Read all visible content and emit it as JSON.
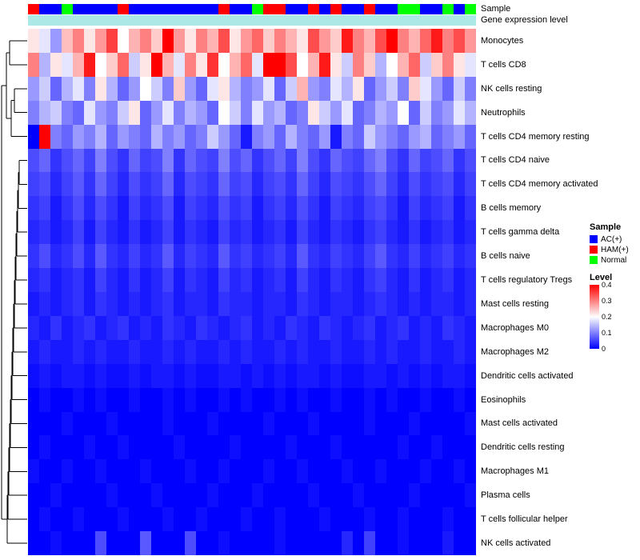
{
  "annotations": {
    "sample_label": "Sample",
    "gene_expr_label": "Gene expression level",
    "gene_expr_color": "#ABE8E6",
    "group_colors": {
      "AC(+)": "#0000FF",
      "HAM(+)": "#FF0000",
      "Normal": "#00FF00"
    },
    "sample_groups": [
      "HAM(+)",
      "AC(+)",
      "AC(+)",
      "Normal",
      "AC(+)",
      "AC(+)",
      "AC(+)",
      "AC(+)",
      "HAM(+)",
      "AC(+)",
      "AC(+)",
      "AC(+)",
      "AC(+)",
      "AC(+)",
      "AC(+)",
      "AC(+)",
      "AC(+)",
      "HAM(+)",
      "AC(+)",
      "AC(+)",
      "Normal",
      "HAM(+)",
      "HAM(+)",
      "AC(+)",
      "AC(+)",
      "HAM(+)",
      "AC(+)",
      "HAM(+)",
      "AC(+)",
      "AC(+)",
      "HAM(+)",
      "AC(+)",
      "AC(+)",
      "Normal",
      "Normal",
      "AC(+)",
      "AC(+)",
      "Normal",
      "AC(+)",
      "Normal"
    ]
  },
  "legend": {
    "sample_title": "Sample",
    "sample_items": [
      {
        "label": "AC(+)",
        "color": "#0000FF"
      },
      {
        "label": "HAM(+)",
        "color": "#FF0000"
      },
      {
        "label": "Normal",
        "color": "#00FF00"
      }
    ],
    "level_title": "Level",
    "level_ticks": [
      "0.4",
      "0.3",
      "0.2",
      "0.1",
      "0"
    ],
    "gradient": [
      "#FF0000",
      "#FFFFFF",
      "#0000FF"
    ]
  },
  "chart_data": {
    "type": "heatmap",
    "title": "",
    "rows": [
      "Monocytes",
      "T cells CD8",
      "NK cells resting",
      "Neutrophils",
      "T cells CD4 memory resting",
      "T cells CD4 naive",
      "T cells CD4 memory activated",
      "B cells memory",
      "T cells gamma delta",
      "B cells naive",
      "T cells regulatory  Tregs",
      "Mast cells resting",
      "Macrophages M0",
      "Macrophages M2",
      "Dendritic cells activated",
      "Eosinophils",
      "Mast cells activated",
      "Dendritic cells resting",
      "Macrophages M1",
      "Plasma cells",
      "T cells follicular helper",
      "NK cells activated"
    ],
    "n_cols": 40,
    "value_range": [
      0,
      0.4
    ],
    "colormap": {
      "low": "#0000FF",
      "mid": "#FFFFFF",
      "high": "#FF0000",
      "mid_value": 0.2
    },
    "values": [
      [
        0.22,
        0.18,
        0.12,
        0.25,
        0.3,
        0.22,
        0.28,
        0.35,
        0.2,
        0.26,
        0.3,
        0.24,
        0.4,
        0.28,
        0.22,
        0.3,
        0.26,
        0.34,
        0.22,
        0.28,
        0.32,
        0.24,
        0.3,
        0.26,
        0.22,
        0.34,
        0.28,
        0.24,
        0.38,
        0.3,
        0.26,
        0.34,
        0.4,
        0.3,
        0.26,
        0.32,
        0.38,
        0.3,
        0.34,
        0.28
      ],
      [
        0.3,
        0.14,
        0.22,
        0.18,
        0.26,
        0.38,
        0.2,
        0.24,
        0.32,
        0.16,
        0.22,
        0.4,
        0.26,
        0.18,
        0.3,
        0.22,
        0.36,
        0.2,
        0.26,
        0.32,
        0.18,
        0.4,
        0.42,
        0.34,
        0.2,
        0.26,
        0.38,
        0.22,
        0.16,
        0.3,
        0.24,
        0.14,
        0.2,
        0.26,
        0.32,
        0.16,
        0.24,
        0.3,
        0.22,
        0.18
      ],
      [
        0.12,
        0.16,
        0.08,
        0.14,
        0.18,
        0.1,
        0.22,
        0.14,
        0.08,
        0.12,
        0.2,
        0.16,
        0.1,
        0.24,
        0.12,
        0.08,
        0.18,
        0.22,
        0.14,
        0.1,
        0.12,
        0.18,
        0.08,
        0.16,
        0.26,
        0.12,
        0.1,
        0.18,
        0.14,
        0.22,
        0.08,
        0.12,
        0.16,
        0.1,
        0.24,
        0.18,
        0.12,
        0.08,
        0.16,
        0.1
      ],
      [
        0.1,
        0.14,
        0.16,
        0.1,
        0.08,
        0.18,
        0.12,
        0.1,
        0.16,
        0.22,
        0.08,
        0.12,
        0.18,
        0.1,
        0.14,
        0.12,
        0.08,
        0.2,
        0.16,
        0.1,
        0.18,
        0.12,
        0.14,
        0.08,
        0.1,
        0.22,
        0.16,
        0.12,
        0.18,
        0.08,
        0.1,
        0.14,
        0.12,
        0.2,
        0.08,
        0.16,
        0.1,
        0.12,
        0.18,
        0.14
      ],
      [
        0.0,
        0.4,
        0.1,
        0.08,
        0.12,
        0.1,
        0.14,
        0.08,
        0.12,
        0.1,
        0.08,
        0.14,
        0.1,
        0.12,
        0.08,
        0.1,
        0.16,
        0.12,
        0.08,
        0.02,
        0.1,
        0.12,
        0.08,
        0.14,
        0.1,
        0.08,
        0.12,
        0.02,
        0.1,
        0.08,
        0.16,
        0.12,
        0.1,
        0.08,
        0.12,
        0.14,
        0.08,
        0.1,
        0.12,
        0.08
      ],
      [
        0.06,
        0.08,
        0.04,
        0.06,
        0.08,
        0.05,
        0.1,
        0.06,
        0.04,
        0.08,
        0.05,
        0.06,
        0.1,
        0.04,
        0.08,
        0.06,
        0.05,
        0.1,
        0.06,
        0.08,
        0.04,
        0.06,
        0.08,
        0.05,
        0.1,
        0.06,
        0.04,
        0.08,
        0.06,
        0.05,
        0.08,
        0.1,
        0.06,
        0.04,
        0.08,
        0.05,
        0.06,
        0.08,
        0.04,
        0.06
      ],
      [
        0.05,
        0.06,
        0.03,
        0.05,
        0.07,
        0.04,
        0.08,
        0.05,
        0.03,
        0.06,
        0.04,
        0.05,
        0.08,
        0.03,
        0.06,
        0.05,
        0.04,
        0.08,
        0.05,
        0.06,
        0.03,
        0.05,
        0.06,
        0.04,
        0.08,
        0.05,
        0.03,
        0.06,
        0.05,
        0.04,
        0.06,
        0.08,
        0.05,
        0.03,
        0.06,
        0.04,
        0.05,
        0.06,
        0.03,
        0.05
      ],
      [
        0.04,
        0.05,
        0.02,
        0.04,
        0.06,
        0.03,
        0.06,
        0.04,
        0.02,
        0.05,
        0.03,
        0.04,
        0.06,
        0.02,
        0.05,
        0.04,
        0.03,
        0.06,
        0.04,
        0.05,
        0.02,
        0.04,
        0.05,
        0.03,
        0.06,
        0.04,
        0.02,
        0.05,
        0.04,
        0.03,
        0.05,
        0.06,
        0.04,
        0.02,
        0.05,
        0.03,
        0.04,
        0.05,
        0.02,
        0.04
      ],
      [
        0.03,
        0.04,
        0.02,
        0.03,
        0.05,
        0.02,
        0.05,
        0.03,
        0.02,
        0.04,
        0.02,
        0.03,
        0.05,
        0.02,
        0.04,
        0.03,
        0.02,
        0.05,
        0.03,
        0.04,
        0.02,
        0.03,
        0.04,
        0.02,
        0.05,
        0.03,
        0.02,
        0.04,
        0.03,
        0.02,
        0.04,
        0.05,
        0.03,
        0.02,
        0.04,
        0.02,
        0.03,
        0.04,
        0.02,
        0.03
      ],
      [
        0.04,
        0.06,
        0.03,
        0.04,
        0.06,
        0.03,
        0.07,
        0.04,
        0.03,
        0.05,
        0.03,
        0.04,
        0.07,
        0.03,
        0.05,
        0.04,
        0.03,
        0.07,
        0.04,
        0.05,
        0.03,
        0.04,
        0.05,
        0.03,
        0.07,
        0.04,
        0.03,
        0.05,
        0.04,
        0.03,
        0.05,
        0.07,
        0.04,
        0.03,
        0.05,
        0.03,
        0.04,
        0.05,
        0.03,
        0.04
      ],
      [
        0.03,
        0.04,
        0.02,
        0.03,
        0.04,
        0.02,
        0.05,
        0.03,
        0.02,
        0.04,
        0.02,
        0.03,
        0.05,
        0.02,
        0.04,
        0.03,
        0.02,
        0.05,
        0.03,
        0.04,
        0.02,
        0.03,
        0.04,
        0.02,
        0.05,
        0.03,
        0.02,
        0.04,
        0.03,
        0.02,
        0.04,
        0.05,
        0.03,
        0.02,
        0.04,
        0.02,
        0.03,
        0.04,
        0.02,
        0.03
      ],
      [
        0.02,
        0.03,
        0.02,
        0.03,
        0.04,
        0.02,
        0.04,
        0.03,
        0.02,
        0.03,
        0.02,
        0.03,
        0.04,
        0.02,
        0.03,
        0.03,
        0.02,
        0.04,
        0.03,
        0.03,
        0.02,
        0.03,
        0.03,
        0.02,
        0.04,
        0.03,
        0.02,
        0.03,
        0.03,
        0.02,
        0.03,
        0.04,
        0.03,
        0.02,
        0.03,
        0.02,
        0.03,
        0.03,
        0.02,
        0.03
      ],
      [
        0.03,
        0.02,
        0.04,
        0.02,
        0.03,
        0.04,
        0.02,
        0.03,
        0.04,
        0.02,
        0.03,
        0.02,
        0.04,
        0.03,
        0.02,
        0.04,
        0.03,
        0.02,
        0.03,
        0.04,
        0.02,
        0.03,
        0.02,
        0.04,
        0.03,
        0.02,
        0.04,
        0.03,
        0.02,
        0.03,
        0.04,
        0.02,
        0.03,
        0.04,
        0.02,
        0.03,
        0.02,
        0.04,
        0.03,
        0.02
      ],
      [
        0.02,
        0.03,
        0.02,
        0.02,
        0.03,
        0.02,
        0.03,
        0.02,
        0.02,
        0.03,
        0.02,
        0.02,
        0.03,
        0.02,
        0.03,
        0.02,
        0.02,
        0.03,
        0.02,
        0.03,
        0.02,
        0.02,
        0.03,
        0.02,
        0.03,
        0.02,
        0.02,
        0.03,
        0.02,
        0.02,
        0.03,
        0.02,
        0.03,
        0.02,
        0.02,
        0.03,
        0.02,
        0.02,
        0.03,
        0.02
      ],
      [
        0.01,
        0.02,
        0.01,
        0.02,
        0.02,
        0.01,
        0.02,
        0.01,
        0.01,
        0.02,
        0.01,
        0.02,
        0.02,
        0.01,
        0.02,
        0.01,
        0.01,
        0.02,
        0.02,
        0.01,
        0.02,
        0.01,
        0.02,
        0.01,
        0.02,
        0.02,
        0.01,
        0.02,
        0.01,
        0.01,
        0.02,
        0.02,
        0.01,
        0.02,
        0.01,
        0.02,
        0.01,
        0.02,
        0.02,
        0.01
      ],
      [
        0.0,
        0.01,
        0.0,
        0.0,
        0.01,
        0.0,
        0.01,
        0.0,
        0.0,
        0.01,
        0.0,
        0.0,
        0.01,
        0.0,
        0.01,
        0.0,
        0.0,
        0.01,
        0.0,
        0.01,
        0.0,
        0.0,
        0.01,
        0.0,
        0.01,
        0.0,
        0.0,
        0.01,
        0.0,
        0.0,
        0.01,
        0.0,
        0.01,
        0.0,
        0.0,
        0.01,
        0.0,
        0.0,
        0.01,
        0.0
      ],
      [
        0.0,
        0.0,
        0.0,
        0.01,
        0.0,
        0.0,
        0.0,
        0.01,
        0.0,
        0.0,
        0.0,
        0.0,
        0.01,
        0.0,
        0.0,
        0.0,
        0.01,
        0.0,
        0.0,
        0.0,
        0.0,
        0.01,
        0.0,
        0.0,
        0.0,
        0.01,
        0.0,
        0.0,
        0.0,
        0.0,
        0.01,
        0.0,
        0.0,
        0.0,
        0.01,
        0.0,
        0.0,
        0.0,
        0.0,
        0.01
      ],
      [
        0.0,
        0.01,
        0.0,
        0.0,
        0.0,
        0.01,
        0.0,
        0.0,
        0.01,
        0.0,
        0.0,
        0.0,
        0.0,
        0.01,
        0.0,
        0.0,
        0.0,
        0.0,
        0.01,
        0.0,
        0.0,
        0.0,
        0.0,
        0.01,
        0.0,
        0.0,
        0.0,
        0.01,
        0.0,
        0.0,
        0.0,
        0.0,
        0.0,
        0.01,
        0.0,
        0.0,
        0.01,
        0.0,
        0.0,
        0.0
      ],
      [
        0.01,
        0.0,
        0.0,
        0.01,
        0.0,
        0.0,
        0.01,
        0.0,
        0.0,
        0.0,
        0.01,
        0.0,
        0.0,
        0.0,
        0.01,
        0.0,
        0.0,
        0.01,
        0.0,
        0.0,
        0.0,
        0.01,
        0.0,
        0.0,
        0.01,
        0.0,
        0.0,
        0.0,
        0.01,
        0.0,
        0.0,
        0.01,
        0.0,
        0.0,
        0.0,
        0.01,
        0.0,
        0.0,
        0.01,
        0.0
      ],
      [
        0.0,
        0.0,
        0.01,
        0.0,
        0.0,
        0.0,
        0.0,
        0.01,
        0.0,
        0.0,
        0.0,
        0.01,
        0.0,
        0.0,
        0.0,
        0.0,
        0.01,
        0.0,
        0.0,
        0.0,
        0.01,
        0.0,
        0.0,
        0.0,
        0.0,
        0.01,
        0.0,
        0.0,
        0.0,
        0.01,
        0.0,
        0.0,
        0.0,
        0.0,
        0.01,
        0.0,
        0.0,
        0.0,
        0.0,
        0.01
      ],
      [
        0.0,
        0.01,
        0.0,
        0.0,
        0.01,
        0.0,
        0.0,
        0.0,
        0.01,
        0.0,
        0.0,
        0.0,
        0.01,
        0.0,
        0.0,
        0.01,
        0.0,
        0.0,
        0.0,
        0.01,
        0.0,
        0.0,
        0.01,
        0.0,
        0.0,
        0.0,
        0.01,
        0.0,
        0.0,
        0.0,
        0.01,
        0.0,
        0.0,
        0.01,
        0.0,
        0.0,
        0.0,
        0.01,
        0.0,
        0.0
      ],
      [
        0.0,
        0.0,
        0.01,
        0.0,
        0.0,
        0.0,
        0.06,
        0.0,
        0.0,
        0.0,
        0.07,
        0.0,
        0.0,
        0.0,
        0.06,
        0.0,
        0.0,
        0.01,
        0.0,
        0.0,
        0.0,
        0.0,
        0.01,
        0.0,
        0.0,
        0.0,
        0.0,
        0.0,
        0.03,
        0.0,
        0.05,
        0.0,
        0.0,
        0.01,
        0.0,
        0.0,
        0.0,
        0.02,
        0.0,
        0.0
      ]
    ]
  }
}
